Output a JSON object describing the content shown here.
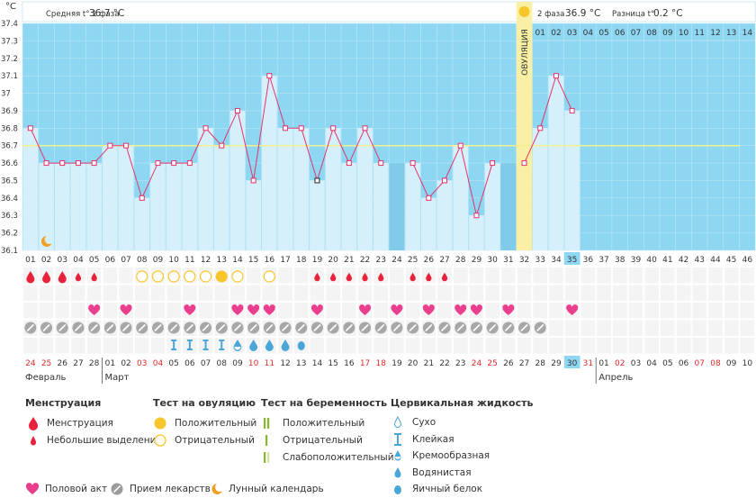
{
  "chart_data": {
    "type": "line",
    "ylabel": "°C",
    "ylim": [
      36.1,
      37.4
    ],
    "yticks": [
      "37.4",
      "37.3",
      "37.2",
      "37.1",
      "37",
      "36.9",
      "36.8",
      "36.7",
      "36.6",
      "36.5",
      "36.4",
      "36.3",
      "36.2",
      "36.1"
    ],
    "cycle_days": [
      "01",
      "02",
      "03",
      "04",
      "05",
      "06",
      "07",
      "08",
      "09",
      "10",
      "11",
      "12",
      "13",
      "14",
      "15",
      "16",
      "17",
      "18",
      "19",
      "20",
      "21",
      "22",
      "23",
      "24",
      "25",
      "26",
      "27",
      "28",
      "29",
      "30",
      "31",
      "32",
      "33",
      "34",
      "35",
      "36",
      "37",
      "38",
      "39",
      "40",
      "41",
      "42",
      "43",
      "44",
      "45",
      "46"
    ],
    "temperatures": [
      36.8,
      36.6,
      36.6,
      36.6,
      36.6,
      36.7,
      36.7,
      36.4,
      36.6,
      36.6,
      36.6,
      36.8,
      36.7,
      36.9,
      36.5,
      37.1,
      36.8,
      36.8,
      36.5,
      36.8,
      36.6,
      36.8,
      36.6,
      null,
      36.6,
      36.4,
      36.5,
      36.7,
      36.3,
      36.6,
      null,
      36.6,
      36.8,
      37.1,
      36.9
    ],
    "dark_column_days": [
      24,
      31
    ],
    "ovulation_day": 32,
    "ovulation_label": "ОВУЛЯЦИЯ",
    "phase2_days_labels": [
      "01",
      "02",
      "03",
      "04",
      "05",
      "06",
      "07",
      "08",
      "09",
      "10",
      "11",
      "12",
      "13",
      "14"
    ],
    "phase1_avg_label": "Средняя t° 1 фаза",
    "phase1_avg_value": "36.7 °C",
    "phase2_label": "2 фаза",
    "phase2_value": "36.9 °C",
    "diff_label": "Разница t°",
    "diff_value": "0.2 °C",
    "cover_line": 36.7,
    "highlight_day": 35,
    "dates": [
      "24",
      "25",
      "26",
      "27",
      "28",
      "01",
      "02",
      "03",
      "04",
      "05",
      "06",
      "07",
      "08",
      "09",
      "10",
      "11",
      "12",
      "13",
      "14",
      "15",
      "16",
      "17",
      "18",
      "19",
      "20",
      "21",
      "22",
      "23",
      "24",
      "25",
      "26",
      "27",
      "28",
      "29",
      "30",
      "31",
      "01",
      "02",
      "03",
      "04",
      "05",
      "06",
      "07",
      "08",
      "09",
      "10"
    ],
    "red_dates_index": [
      0,
      1,
      7,
      8,
      14,
      15,
      21,
      22,
      28,
      29,
      35,
      37,
      42,
      43
    ],
    "highlight_date_index": 34,
    "months": [
      {
        "label": "Февраль",
        "index": 0
      },
      {
        "label": "Март",
        "index": 5
      },
      {
        "label": "Апрель",
        "index": 36
      }
    ],
    "menstruation_big": [
      1,
      2,
      3
    ],
    "menstruation_small": [
      4,
      5,
      19,
      20,
      21,
      22,
      23,
      25,
      26,
      27
    ],
    "ovulation_test_positive": [
      13
    ],
    "ovulation_test_negative": [
      8,
      9,
      10,
      11,
      12,
      14,
      16
    ],
    "intercourse": [
      5,
      7,
      11,
      14,
      15,
      16,
      19,
      22,
      24,
      26,
      28,
      29,
      31,
      35
    ],
    "medication": [
      1,
      2,
      3,
      4,
      5,
      6,
      7,
      8,
      9,
      10,
      11,
      12,
      13,
      14,
      15,
      16,
      17,
      18,
      19,
      20,
      21,
      22,
      23,
      24,
      25,
      26,
      27,
      28,
      29,
      30,
      31,
      32,
      33
    ],
    "moon_day": 2,
    "cervical_sticky": [
      10,
      11,
      12,
      13
    ],
    "cervical_creamy": [
      14
    ],
    "cervical_watery": [
      15,
      16,
      17
    ],
    "cervical_eggwhite": [
      18
    ],
    "colors": {
      "sky": "#8ed7f2",
      "bar": "#d6f0fb",
      "bar_dark": "#7fcbe9",
      "line": "#e3336b",
      "cover": "#f2ef8f",
      "ovul": "#f9f0a6"
    }
  },
  "legend": {
    "menstruation": {
      "title": "Менструация",
      "items": [
        "Менструация",
        "Небольшие выделения"
      ]
    },
    "ovulation_test": {
      "title": "Тест на овуляцию",
      "items": [
        "Положительный",
        "Отрицательный"
      ]
    },
    "pregnancy_test": {
      "title": "Тест на беременность",
      "items": [
        "Положительный",
        "Отрицательный",
        "Слабоположительный"
      ]
    },
    "cervical": {
      "title": "Цервикальная жидкость",
      "items": [
        "Сухо",
        "Клейкая",
        "Кремообразная",
        "Водянистая",
        "Яичный белок"
      ]
    },
    "bottom": [
      "Половой акт",
      "Прием лекарств",
      "Лунный календарь"
    ]
  }
}
